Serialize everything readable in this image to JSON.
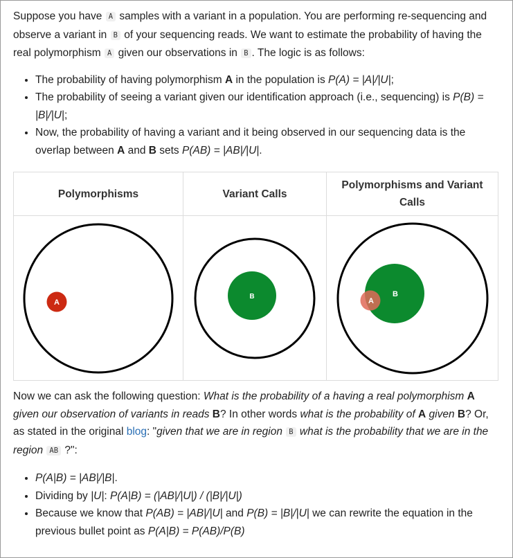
{
  "intro": {
    "t1": "Suppose you have ",
    "c1": "A",
    "t2": " samples with a variant in a population. You are performing re-sequencing and observe a variant in ",
    "c2": "B",
    "t3": " of your sequencing reads. We want to estimate the probability of having the real polymorphism ",
    "c3": "A",
    "t4": " given our observations in ",
    "c4": "B",
    "t5": ". The logic is as follows:"
  },
  "bullets1": {
    "b1": {
      "t1": "The probability of having polymorphism ",
      "bold": "A",
      "t2": " in the population is ",
      "em": "P(A) = |A|/|U|",
      "t3": ";"
    },
    "b2": {
      "t1": "The probability of seeing a variant given our identification approach (i.e., sequencing) is ",
      "em": "P(B) = |B|/|U|",
      "t2": ";"
    },
    "b3": {
      "t1": "Now, the probability of having a variant and it being observed in our sequencing data is the overlap between ",
      "bold1": "A",
      "t2": " and ",
      "bold2": "B",
      "t3": " sets ",
      "em": "P(AB) = |AB|/|U|",
      "t4": "."
    }
  },
  "table": {
    "headers": [
      "Polymorphisms",
      "Variant Calls",
      "Polymorphisms and Variant Calls"
    ],
    "labels": {
      "a": "A",
      "b": "B"
    },
    "colors": {
      "red": "#cc2a12",
      "red_faded": "#d46a5c",
      "green": "#0c8a2e",
      "outline": "#000000"
    }
  },
  "para2": {
    "t1": "Now we can ask the following question: ",
    "em1": "What is the probability of a having a real polymorphism ",
    "b1": "A",
    "em2": " given our observation of variants in reads ",
    "b2": "B",
    "t2": "? In other words ",
    "em3": "what is the probability of ",
    "b3": "A",
    "em4": " given ",
    "b4": "B",
    "t3": "? Or, as stated in the original ",
    "link": "blog",
    "t4": ": \"",
    "em5": "given that we are in region ",
    "c1": "B",
    "em6": " what is the probability that we are in the region ",
    "c2": "AB",
    "t5": " ?\":"
  },
  "bullets2": {
    "b1": {
      "em": "P(A|B) = |AB|/|B|",
      "t1": "."
    },
    "b2": {
      "t1": "Dividing by ",
      "em1": "|U|",
      "t2": ": ",
      "em2": "P(A|B) = (|AB|/|U|) / (|B|/|U|)"
    },
    "b3": {
      "t1": "Because we know that ",
      "em1": "P(AB) = |AB|/|U|",
      "t2": " and ",
      "em2": "P(B) = |B|/|U|",
      "t3": " we can rewrite the equation in the previous bullet point as ",
      "em3": "P(A|B) = P(AB)/P(B)"
    }
  }
}
